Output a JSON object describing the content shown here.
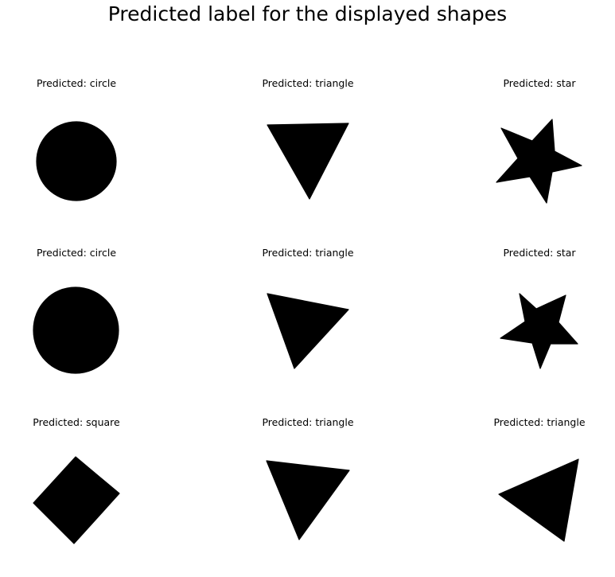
{
  "figure": {
    "title": "Predicted label for the displayed shapes"
  },
  "panels": [
    {
      "label": "Predicted: circle",
      "shape": "circle"
    },
    {
      "label": "Predicted: triangle",
      "shape": "triangle"
    },
    {
      "label": "Predicted: star",
      "shape": "star"
    },
    {
      "label": "Predicted: circle",
      "shape": "circle"
    },
    {
      "label": "Predicted: triangle",
      "shape": "triangle"
    },
    {
      "label": "Predicted: star",
      "shape": "star"
    },
    {
      "label": "Predicted: square",
      "shape": "square"
    },
    {
      "label": "Predicted: triangle",
      "shape": "triangle"
    },
    {
      "label": "Predicted: triangle",
      "shape": "triangle"
    }
  ],
  "colors": {
    "shape_fill": "#000000",
    "background": "#ffffff",
    "text": "#000000"
  }
}
